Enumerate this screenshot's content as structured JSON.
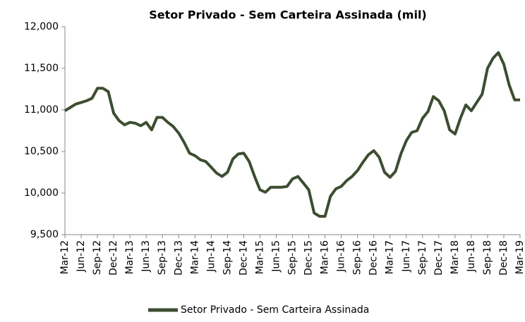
{
  "chart_data": {
    "type": "line",
    "title": "Setor Privado - Sem Carteira Assinada (mil)",
    "categories": [
      "Mar-12",
      null,
      null,
      "Jun-12",
      null,
      null,
      "Sep-12",
      null,
      null,
      "Dec-12",
      null,
      null,
      "Mar-13",
      null,
      null,
      "Jun-13",
      null,
      null,
      "Sep-13",
      null,
      null,
      "Dec-13",
      null,
      null,
      "Mar-14",
      null,
      null,
      "Jun-14",
      null,
      null,
      "Sep-14",
      null,
      null,
      "Dec-14",
      null,
      null,
      "Mar-15",
      null,
      null,
      "Jun-15",
      null,
      null,
      "Sep-15",
      null,
      null,
      "Dec-15",
      null,
      null,
      "Mar-16",
      null,
      null,
      "Jun-16",
      null,
      null,
      "Sep-16",
      null,
      null,
      "Dec-16",
      null,
      null,
      "Mar-17",
      null,
      null,
      "Jun-17",
      null,
      null,
      "Sep-17",
      null,
      null,
      "Dec-17",
      null,
      null,
      "Mar-18",
      null,
      null,
      "Jun-18",
      null,
      null,
      "Sep-18",
      null,
      null,
      "Dec-18",
      null,
      null,
      "Mar-19"
    ],
    "series": [
      {
        "name": "Setor Privado - Sem Carteira Assinada",
        "color": "#3b4f2e",
        "values": [
          10990,
          11030,
          11070,
          11090,
          11110,
          11140,
          11260,
          11260,
          11220,
          10960,
          10870,
          10820,
          10850,
          10840,
          10810,
          10850,
          10760,
          10910,
          10910,
          10850,
          10800,
          10720,
          10610,
          10480,
          10450,
          10400,
          10380,
          10310,
          10240,
          10200,
          10250,
          10410,
          10470,
          10480,
          10380,
          10200,
          10040,
          10010,
          10070,
          10070,
          10070,
          10080,
          10170,
          10200,
          10120,
          10040,
          9760,
          9720,
          9720,
          9960,
          10050,
          10080,
          10150,
          10200,
          10270,
          10370,
          10460,
          10510,
          10430,
          10250,
          10190,
          10260,
          10470,
          10630,
          10730,
          10750,
          10900,
          10980,
          11160,
          11110,
          10990,
          10760,
          10710,
          10900,
          11060,
          10990,
          11090,
          11190,
          11500,
          11620,
          11690,
          11550,
          11300,
          11120,
          11120
        ]
      }
    ],
    "ylim": [
      9500,
      12000
    ],
    "yticks": [
      {
        "value": 9500,
        "label": "9,500"
      },
      {
        "value": 10000,
        "label": "10,000"
      },
      {
        "value": 10500,
        "label": "10,500"
      },
      {
        "value": 11000,
        "label": "11,000"
      },
      {
        "value": 11500,
        "label": "11,500"
      },
      {
        "value": 12000,
        "label": "12,000"
      }
    ],
    "grid": false
  }
}
